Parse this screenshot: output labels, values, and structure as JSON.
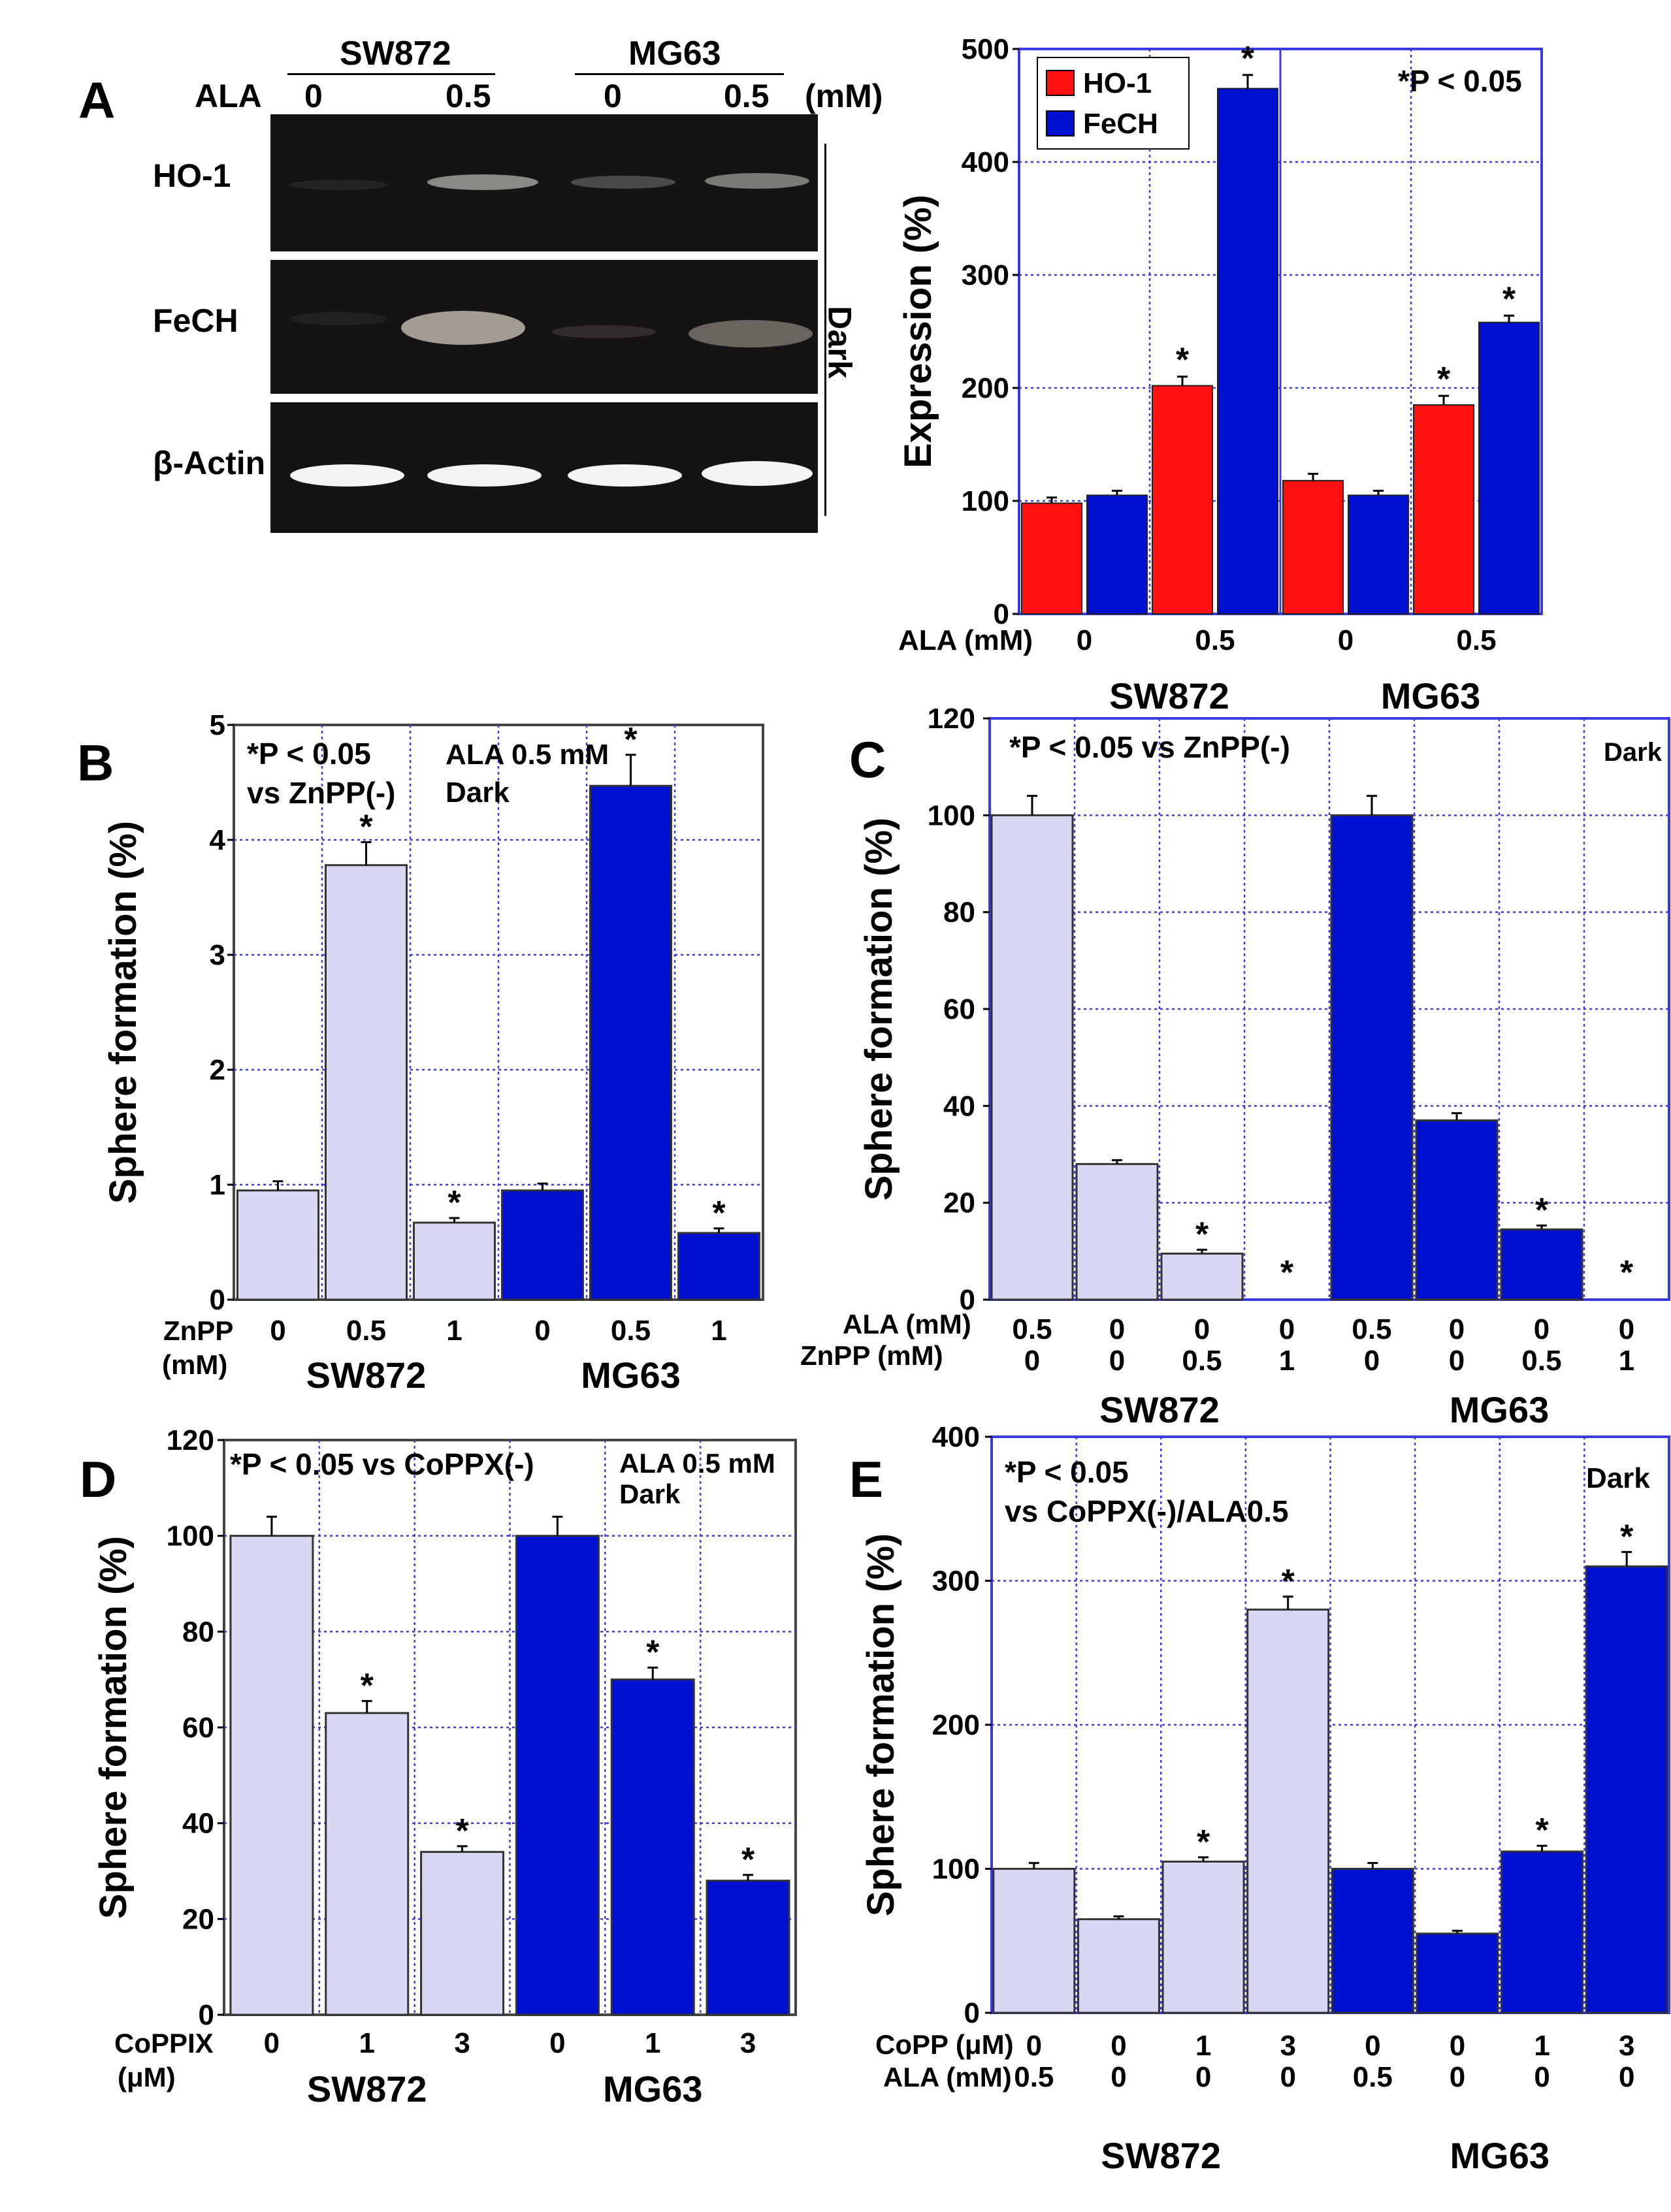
{
  "colors": {
    "red": "#ff1111",
    "blue": "#0010d0",
    "lavender": "#d8d8f2",
    "grid": "#3a3ae0",
    "frame": "#3a3ae0",
    "gel": "#141414"
  },
  "panelA": {
    "letter": "A",
    "lane_label": "ALA",
    "groups": [
      "SW872",
      "MG63"
    ],
    "concentrations": [
      "0",
      "0.5",
      "0",
      "0.5"
    ],
    "unit": "(mM)",
    "rows": [
      "HO-1",
      "FeCH",
      "β-Actin"
    ],
    "side_label": "Dark"
  },
  "chart_data": [
    {
      "id": "A-chart",
      "type": "bar",
      "title": "",
      "ylabel": "Expression (%)",
      "ylim": [
        0,
        500
      ],
      "yticks": [
        0,
        100,
        200,
        300,
        400,
        500
      ],
      "x_prefix": "ALA (mM)",
      "categories": [
        "0",
        "0.5",
        "0",
        "0.5"
      ],
      "groups": [
        "SW872",
        "MG63"
      ],
      "series": [
        {
          "name": "HO-1",
          "color": "#ff1111",
          "values": [
            98,
            202,
            118,
            185
          ],
          "errors": [
            5,
            8,
            6,
            8
          ]
        },
        {
          "name": "FeCH",
          "color": "#0010d0",
          "values": [
            105,
            465,
            105,
            258
          ],
          "errors": [
            4,
            12,
            4,
            6
          ]
        }
      ],
      "significant": [
        [
          false,
          true,
          false,
          true
        ],
        [
          false,
          true,
          false,
          true
        ]
      ],
      "annotation": "*P < 0.05",
      "grid": true,
      "legend": "top-left"
    },
    {
      "id": "B",
      "type": "bar",
      "letter": "B",
      "ylabel": "Sphere formation (%)",
      "ylim": [
        0,
        5
      ],
      "yticks": [
        0,
        1,
        2,
        3,
        4,
        5
      ],
      "row_labels": [
        [
          "ZnPP",
          "(mM)"
        ]
      ],
      "categories": [
        [
          "0"
        ],
        [
          "0.5"
        ],
        [
          "1"
        ],
        [
          "0"
        ],
        [
          "0.5"
        ],
        [
          "1"
        ]
      ],
      "groups": [
        "SW872",
        "MG63"
      ],
      "values": [
        0.95,
        3.78,
        0.67,
        0.95,
        4.47,
        0.58
      ],
      "errors": [
        0.08,
        0.2,
        0.04,
        0.06,
        0.27,
        0.04
      ],
      "significant": [
        false,
        true,
        true,
        false,
        true,
        true
      ],
      "bar_colors": [
        "lavender",
        "lavender",
        "lavender",
        "blue",
        "blue",
        "blue"
      ],
      "annotations": [
        "*P < 0.05",
        "vs ZnPP(-)",
        "ALA  0.5 mM",
        "Dark"
      ],
      "grid": true
    },
    {
      "id": "C",
      "type": "bar",
      "letter": "C",
      "ylabel": "Sphere formation (%)",
      "ylim": [
        0,
        120
      ],
      "yticks": [
        0,
        20,
        40,
        60,
        80,
        100,
        120
      ],
      "row_labels": [
        [
          "ALA (mM)"
        ],
        [
          "ZnPP (mM)"
        ]
      ],
      "categories": [
        [
          "0.5",
          "0"
        ],
        [
          "0",
          "0"
        ],
        [
          "0",
          "0.5"
        ],
        [
          "0",
          "1"
        ],
        [
          "0.5",
          "0"
        ],
        [
          "0",
          "0"
        ],
        [
          "0",
          "0.5"
        ],
        [
          "0",
          "1"
        ]
      ],
      "groups": [
        "SW872",
        "MG63"
      ],
      "values": [
        100,
        28,
        9.5,
        0,
        100,
        37,
        14.5,
        0
      ],
      "errors": [
        4,
        0.8,
        0.8,
        0,
        4,
        1.5,
        0.8,
        0
      ],
      "significant": [
        false,
        false,
        true,
        true,
        false,
        false,
        true,
        true
      ],
      "bar_colors": [
        "lavender",
        "lavender",
        "lavender",
        "lavender",
        "blue",
        "blue",
        "blue",
        "blue"
      ],
      "annotations": [
        "*P < 0.05 vs ZnPP(-)",
        "Dark"
      ],
      "grid": true
    },
    {
      "id": "D",
      "type": "bar",
      "letter": "D",
      "ylabel": "Sphere formation (%)",
      "ylim": [
        0,
        120
      ],
      "yticks": [
        0,
        20,
        40,
        60,
        80,
        100,
        120
      ],
      "row_labels": [
        [
          "CoPPIX",
          "(μM)"
        ]
      ],
      "categories": [
        [
          "0"
        ],
        [
          "1"
        ],
        [
          "3"
        ],
        [
          "0"
        ],
        [
          "1"
        ],
        [
          "3"
        ]
      ],
      "groups": [
        "SW872",
        "MG63"
      ],
      "values": [
        100,
        63,
        34,
        100,
        70,
        28
      ],
      "errors": [
        4,
        2.5,
        1.2,
        4,
        2.5,
        1.2
      ],
      "significant": [
        false,
        true,
        true,
        false,
        true,
        true
      ],
      "bar_colors": [
        "lavender",
        "lavender",
        "lavender",
        "blue",
        "blue",
        "blue"
      ],
      "annotations": [
        "*P < 0.05 vs CoPPX(-)",
        "ALA  0.5 mM",
        "Dark"
      ],
      "grid": true
    },
    {
      "id": "E",
      "type": "bar",
      "letter": "E",
      "ylabel": "Sphere formation (%)",
      "ylim": [
        0,
        400
      ],
      "yticks": [
        0,
        100,
        200,
        300,
        400
      ],
      "row_labels": [
        [
          "CoPP (μM)"
        ],
        [
          "ALA  (mM)"
        ]
      ],
      "categories": [
        [
          "0",
          "0.5"
        ],
        [
          "0",
          "0"
        ],
        [
          "1",
          "0"
        ],
        [
          "3",
          "0"
        ],
        [
          "0",
          "0.5"
        ],
        [
          "0",
          "0"
        ],
        [
          "1",
          "0"
        ],
        [
          "3",
          "0"
        ]
      ],
      "groups": [
        "SW872",
        "MG63"
      ],
      "values": [
        100,
        65,
        105,
        280,
        100,
        55,
        112,
        310
      ],
      "errors": [
        4,
        2,
        3,
        9,
        4,
        2,
        4,
        10
      ],
      "significant": [
        false,
        false,
        true,
        true,
        false,
        false,
        true,
        true
      ],
      "bar_colors": [
        "lavender",
        "lavender",
        "lavender",
        "lavender",
        "blue",
        "blue",
        "blue",
        "blue"
      ],
      "annotations": [
        "*P < 0.05",
        "vs CoPPX(-)/ALA0.5",
        "Dark"
      ],
      "grid": true
    }
  ]
}
